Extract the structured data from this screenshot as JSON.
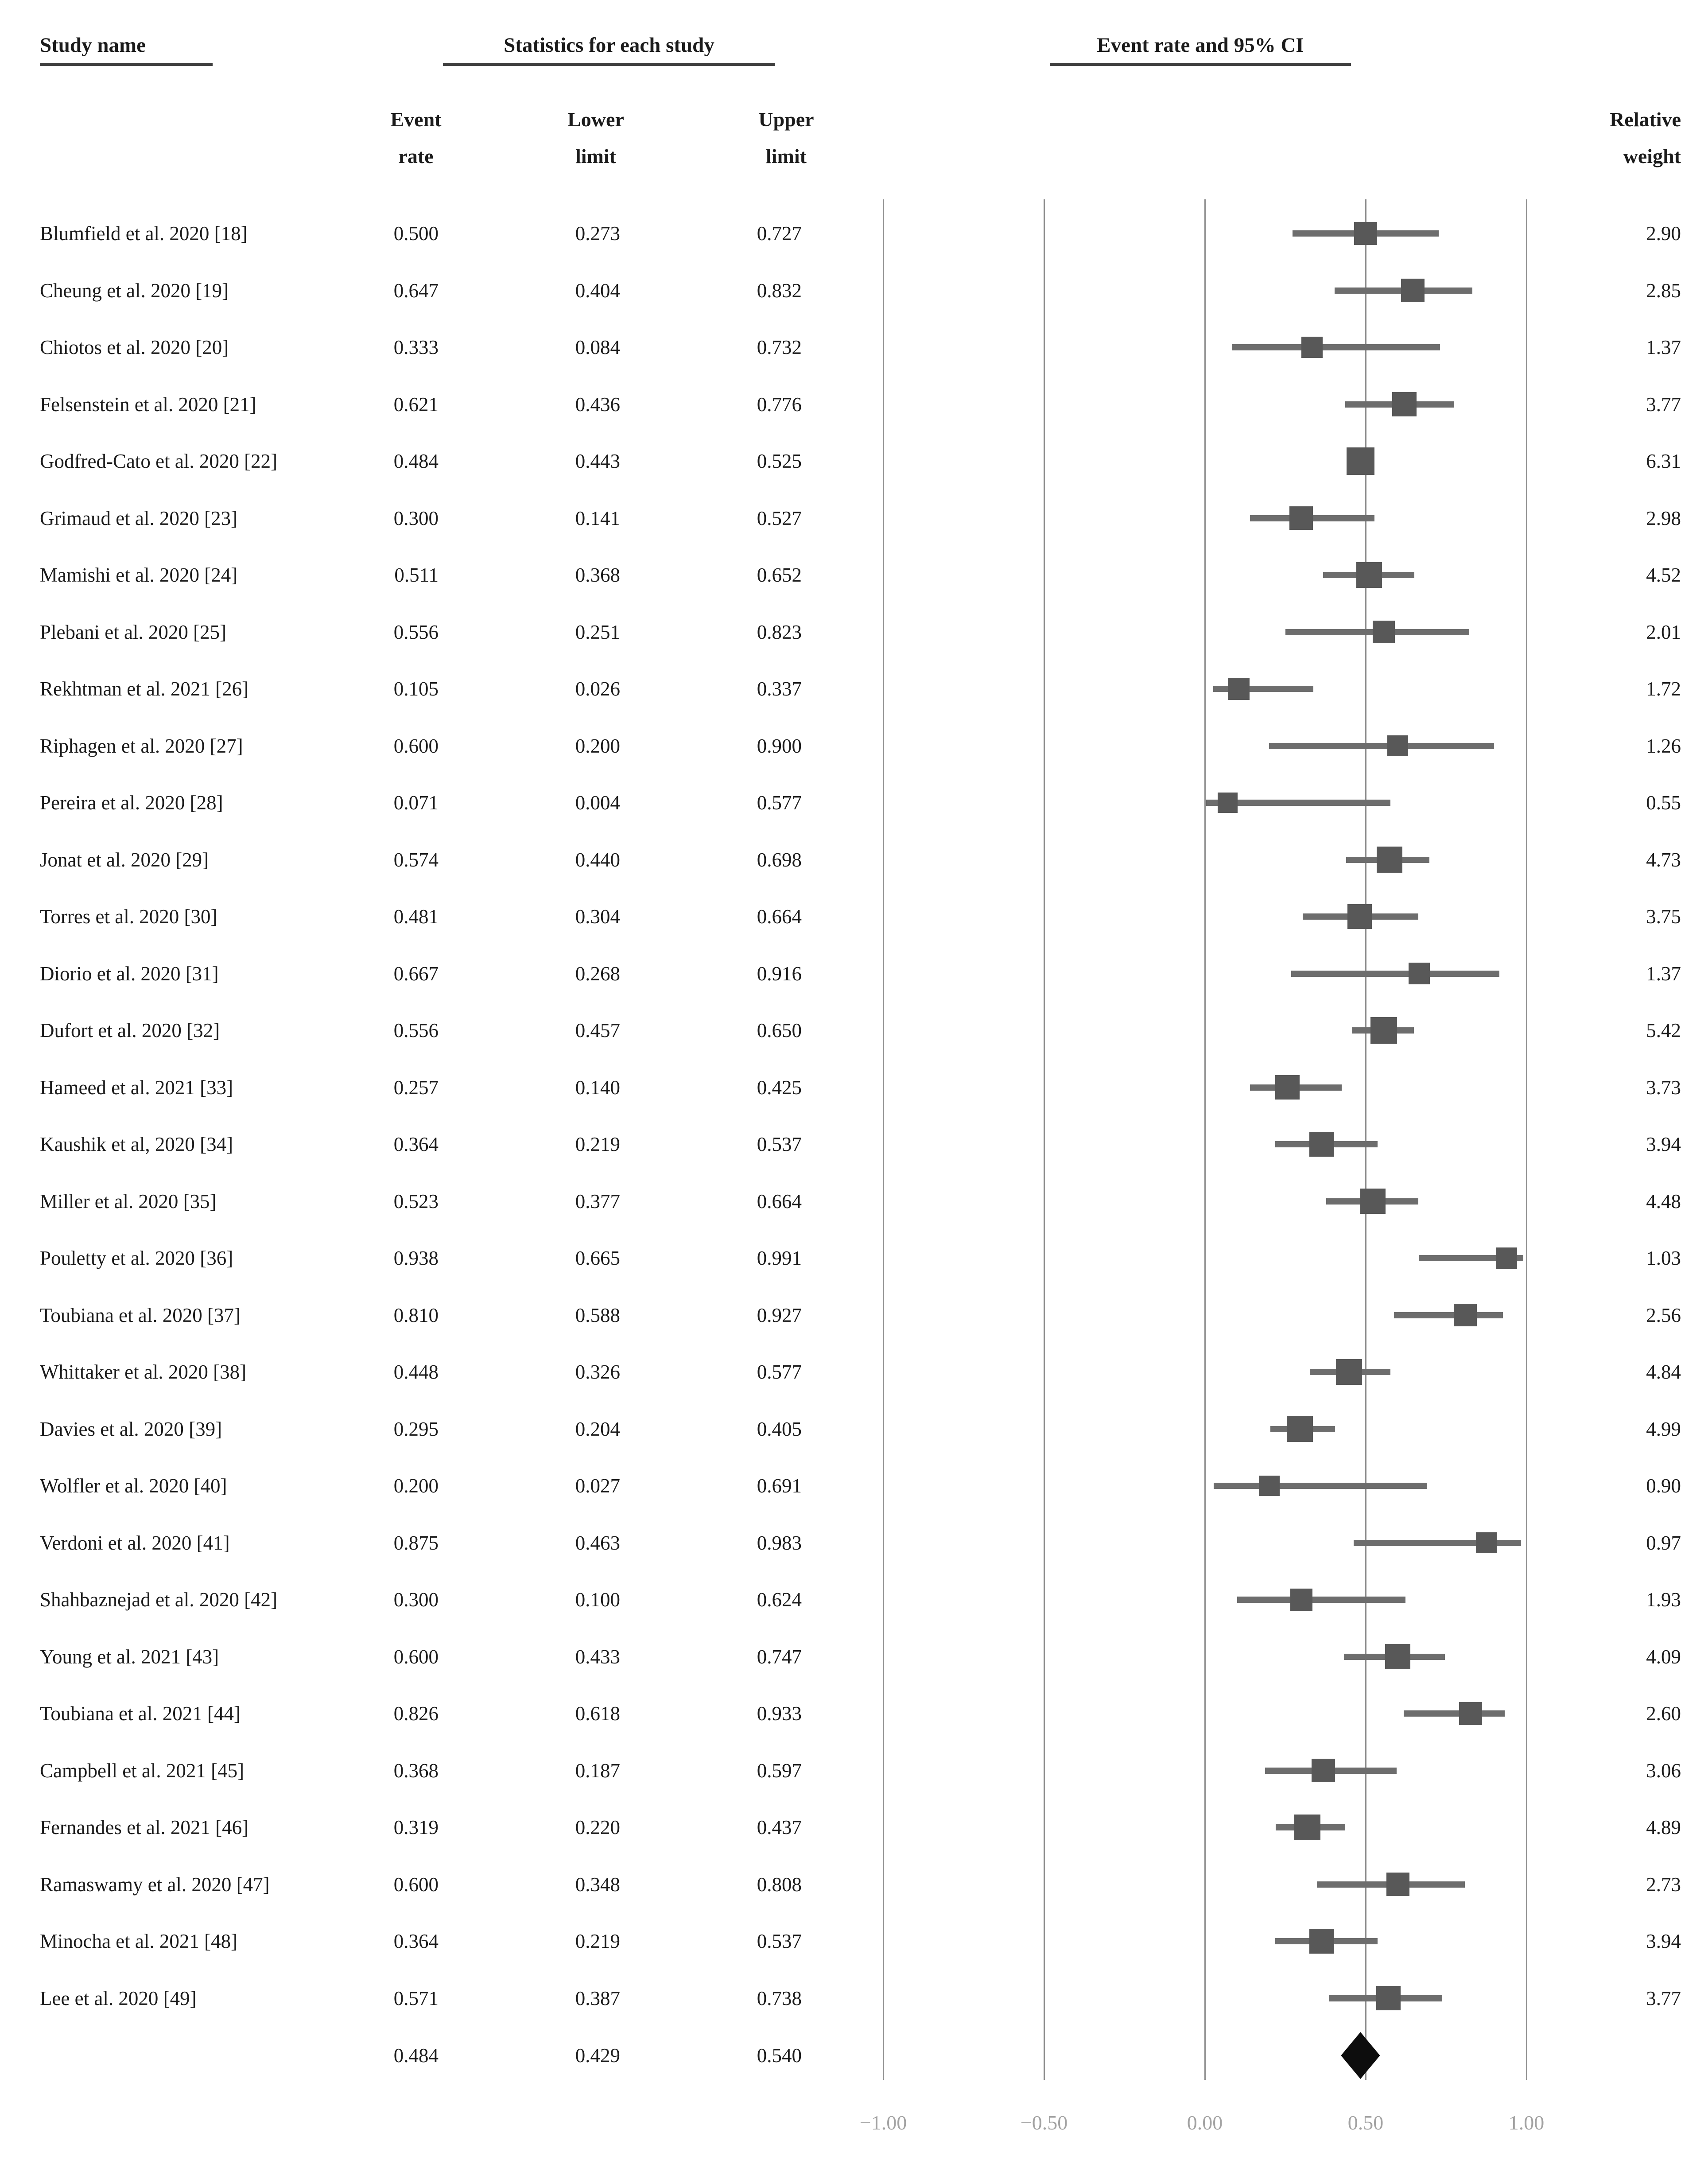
{
  "header": {
    "study_name": "Study name",
    "statistics": "Statistics for each study",
    "ci": "Event rate and 95% CI",
    "sub_event": [
      "Event",
      "rate"
    ],
    "sub_lower": [
      "Lower",
      "limit"
    ],
    "sub_upper": [
      "Upper",
      "limit"
    ],
    "sub_weight": [
      "Relative",
      "weight"
    ]
  },
  "colors": {
    "square": "#585858",
    "whisker": "#6d6d6d",
    "gridline": "#8f8f8f",
    "diamond": "#0d0d0d",
    "axis_label": "#a2a2a2",
    "text": "#1b1b1b",
    "underline": "#3f3f3f"
  },
  "chart_data": {
    "type": "scatter",
    "variant": "forest-plot",
    "title": "",
    "xlabel": "",
    "ylabel": "",
    "xlim": [
      -1,
      1
    ],
    "grid": "vertical-gridlines-at-ticks",
    "legend": "none",
    "x_axis": {
      "tick_values": [
        -1,
        -0.5,
        0,
        0.5,
        1
      ],
      "tick_labels": [
        "−1.00",
        "−0.50",
        "0.00",
        "0.50",
        "1.00"
      ]
    },
    "columns": [
      "Study name",
      "Event rate",
      "Lower limit",
      "Upper limit",
      "Relative weight"
    ],
    "studies": [
      {
        "name": "Blumfield et al. 2020 [18]",
        "event_rate": "0.500",
        "lower_limit": "0.273",
        "upper_limit": "0.727",
        "relative_weight": "2.90"
      },
      {
        "name": "Cheung et al. 2020 [19]",
        "event_rate": "0.647",
        "lower_limit": "0.404",
        "upper_limit": "0.832",
        "relative_weight": "2.85"
      },
      {
        "name": "Chiotos et al. 2020 [20]",
        "event_rate": "0.333",
        "lower_limit": "0.084",
        "upper_limit": "0.732",
        "relative_weight": "1.37"
      },
      {
        "name": "Felsenstein et al. 2020 [21]",
        "event_rate": "0.621",
        "lower_limit": "0.436",
        "upper_limit": "0.776",
        "relative_weight": "3.77"
      },
      {
        "name": "Godfred-Cato et al. 2020 [22]",
        "event_rate": "0.484",
        "lower_limit": "0.443",
        "upper_limit": "0.525",
        "relative_weight": "6.31"
      },
      {
        "name": "Grimaud et al. 2020 [23]",
        "event_rate": "0.300",
        "lower_limit": "0.141",
        "upper_limit": "0.527",
        "relative_weight": "2.98"
      },
      {
        "name": "Mamishi et al. 2020 [24]",
        "event_rate": "0.511",
        "lower_limit": "0.368",
        "upper_limit": "0.652",
        "relative_weight": "4.52"
      },
      {
        "name": "Plebani et al. 2020 [25]",
        "event_rate": "0.556",
        "lower_limit": "0.251",
        "upper_limit": "0.823",
        "relative_weight": "2.01"
      },
      {
        "name": "Rekhtman et al. 2021 [26]",
        "event_rate": "0.105",
        "lower_limit": "0.026",
        "upper_limit": "0.337",
        "relative_weight": "1.72"
      },
      {
        "name": "Riphagen et al. 2020 [27]",
        "event_rate": "0.600",
        "lower_limit": "0.200",
        "upper_limit": "0.900",
        "relative_weight": "1.26"
      },
      {
        "name": "Pereira et al. 2020 [28]",
        "event_rate": "0.071",
        "lower_limit": "0.004",
        "upper_limit": "0.577",
        "relative_weight": "0.55"
      },
      {
        "name": "Jonat et al. 2020 [29]",
        "event_rate": "0.574",
        "lower_limit": "0.440",
        "upper_limit": "0.698",
        "relative_weight": "4.73"
      },
      {
        "name": "Torres et al. 2020 [30]",
        "event_rate": "0.481",
        "lower_limit": "0.304",
        "upper_limit": "0.664",
        "relative_weight": "3.75"
      },
      {
        "name": "Diorio et al. 2020 [31]",
        "event_rate": "0.667",
        "lower_limit": "0.268",
        "upper_limit": "0.916",
        "relative_weight": "1.37"
      },
      {
        "name": "Dufort et al. 2020 [32]",
        "event_rate": "0.556",
        "lower_limit": "0.457",
        "upper_limit": "0.650",
        "relative_weight": "5.42"
      },
      {
        "name": "Hameed et al. 2021 [33]",
        "event_rate": "0.257",
        "lower_limit": "0.140",
        "upper_limit": "0.425",
        "relative_weight": "3.73"
      },
      {
        "name": "Kaushik et al, 2020 [34]",
        "event_rate": "0.364",
        "lower_limit": "0.219",
        "upper_limit": "0.537",
        "relative_weight": "3.94"
      },
      {
        "name": "Miller et al. 2020 [35]",
        "event_rate": "0.523",
        "lower_limit": "0.377",
        "upper_limit": "0.664",
        "relative_weight": "4.48"
      },
      {
        "name": "Pouletty et al. 2020 [36]",
        "event_rate": "0.938",
        "lower_limit": "0.665",
        "upper_limit": "0.991",
        "relative_weight": "1.03"
      },
      {
        "name": "Toubiana et al. 2020 [37]",
        "event_rate": "0.810",
        "lower_limit": "0.588",
        "upper_limit": "0.927",
        "relative_weight": "2.56"
      },
      {
        "name": "Whittaker et al. 2020 [38]",
        "event_rate": "0.448",
        "lower_limit": "0.326",
        "upper_limit": "0.577",
        "relative_weight": "4.84"
      },
      {
        "name": "Davies et al. 2020 [39]",
        "event_rate": "0.295",
        "lower_limit": "0.204",
        "upper_limit": "0.405",
        "relative_weight": "4.99"
      },
      {
        "name": "Wolfler et al. 2020 [40]",
        "event_rate": "0.200",
        "lower_limit": "0.027",
        "upper_limit": "0.691",
        "relative_weight": "0.90"
      },
      {
        "name": "Verdoni et al. 2020 [41]",
        "event_rate": "0.875",
        "lower_limit": "0.463",
        "upper_limit": "0.983",
        "relative_weight": "0.97"
      },
      {
        "name": "Shahbaznejad et al. 2020 [42]",
        "event_rate": "0.300",
        "lower_limit": "0.100",
        "upper_limit": "0.624",
        "relative_weight": "1.93"
      },
      {
        "name": "Young et al. 2021 [43]",
        "event_rate": "0.600",
        "lower_limit": "0.433",
        "upper_limit": "0.747",
        "relative_weight": "4.09"
      },
      {
        "name": "Toubiana et al. 2021 [44]",
        "event_rate": "0.826",
        "lower_limit": "0.618",
        "upper_limit": "0.933",
        "relative_weight": "2.60"
      },
      {
        "name": "Campbell et al. 2021 [45]",
        "event_rate": "0.368",
        "lower_limit": "0.187",
        "upper_limit": "0.597",
        "relative_weight": "3.06"
      },
      {
        "name": "Fernandes et al. 2021 [46]",
        "event_rate": "0.319",
        "lower_limit": "0.220",
        "upper_limit": "0.437",
        "relative_weight": "4.89"
      },
      {
        "name": "Ramaswamy et al. 2020 [47]",
        "event_rate": "0.600",
        "lower_limit": "0.348",
        "upper_limit": "0.808",
        "relative_weight": "2.73"
      },
      {
        "name": "Minocha et al. 2021 [48]",
        "event_rate": "0.364",
        "lower_limit": "0.219",
        "upper_limit": "0.537",
        "relative_weight": "3.94"
      },
      {
        "name": "Lee et al. 2020 [49]",
        "event_rate": "0.571",
        "lower_limit": "0.387",
        "upper_limit": "0.738",
        "relative_weight": "3.77"
      }
    ],
    "summary": {
      "event_rate": "0.484",
      "lower_limit": "0.429",
      "upper_limit": "0.540",
      "marker": "diamond"
    }
  }
}
